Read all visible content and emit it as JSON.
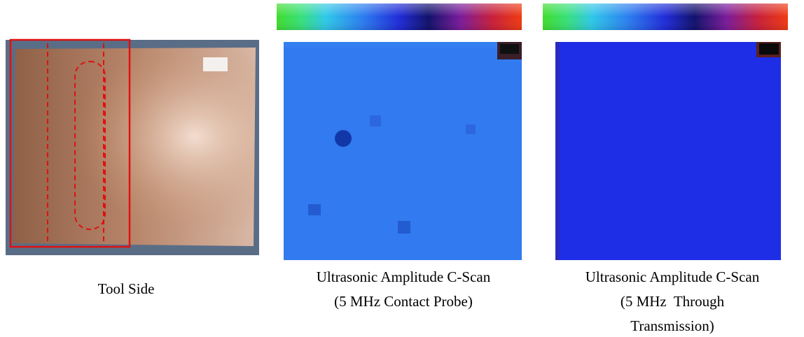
{
  "panels": [
    {
      "caption": [
        "Tool Side"
      ]
    },
    {
      "caption": [
        "Ultrasonic Amplitude C-Scan",
        "(5 MHz Contact Probe)"
      ]
    },
    {
      "caption": [
        "Ultrasonic Amplitude C-Scan",
        "(5 MHz  Through",
        "Transmission)"
      ]
    }
  ]
}
